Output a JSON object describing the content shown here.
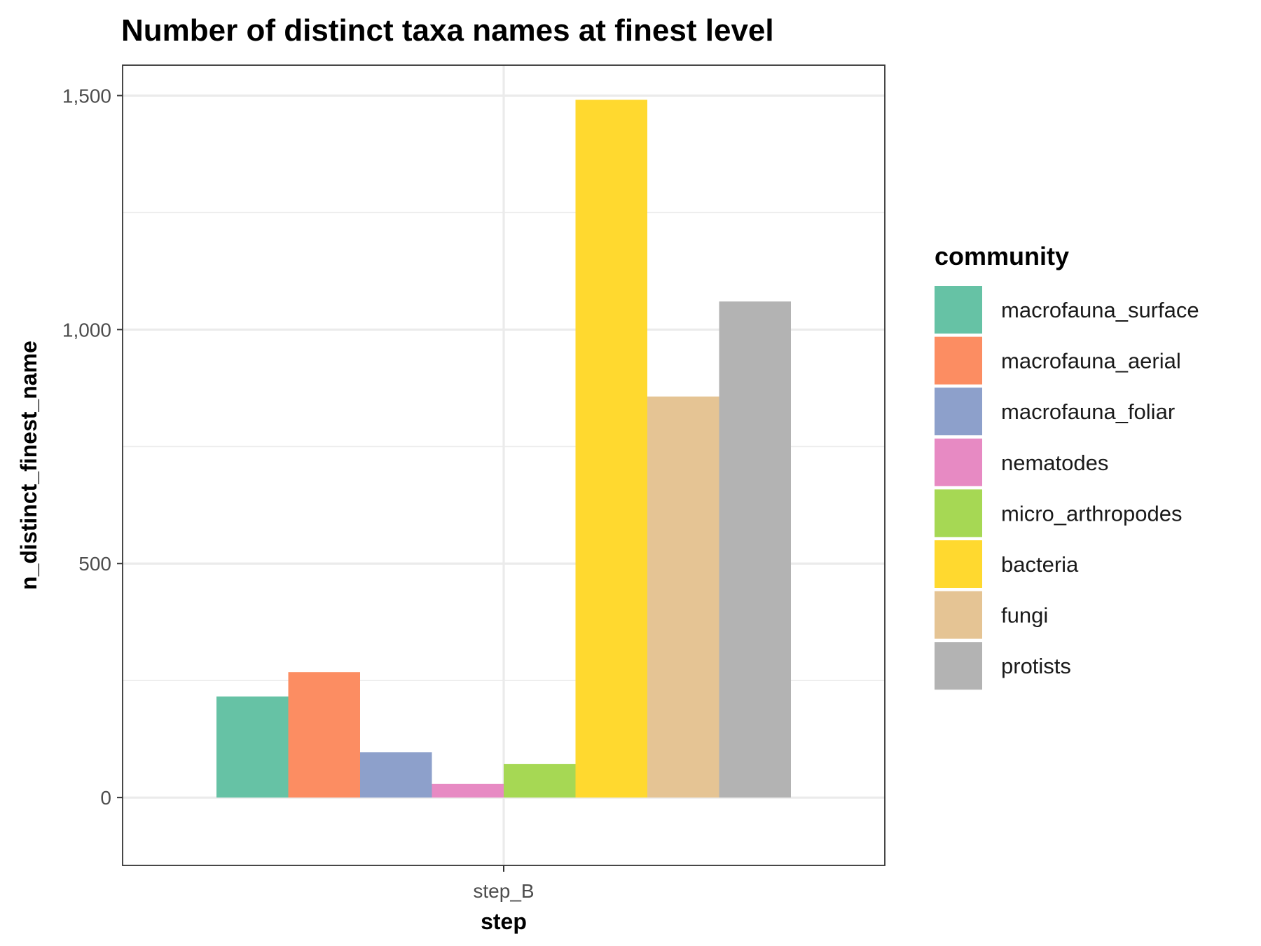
{
  "chart_data": {
    "type": "bar",
    "title": "Number of distinct taxa names at finest level",
    "xlabel": "step",
    "ylabel": "n_distinct_finest_name",
    "categories": [
      "step_B"
    ],
    "ylim": [
      -145,
      1565
    ],
    "yticks": [
      0,
      500,
      1000,
      1500
    ],
    "ytick_labels": [
      "0",
      "500",
      "1,000",
      "1,500"
    ],
    "grid": true,
    "legend": {
      "title": "community",
      "position": "right"
    },
    "series": [
      {
        "name": "macrofauna_surface",
        "color": "#66C2A5",
        "values": [
          216
        ]
      },
      {
        "name": "macrofauna_aerial",
        "color": "#FC8D62",
        "values": [
          268
        ]
      },
      {
        "name": "macrofauna_foliar",
        "color": "#8DA0CB",
        "values": [
          97
        ]
      },
      {
        "name": "nematodes",
        "color": "#E78AC3",
        "values": [
          29
        ]
      },
      {
        "name": "micro_arthropodes",
        "color": "#A6D854",
        "values": [
          72
        ]
      },
      {
        "name": "bacteria",
        "color": "#FFD92F",
        "values": [
          1491
        ]
      },
      {
        "name": "fungi",
        "color": "#E5C494",
        "values": [
          857
        ]
      },
      {
        "name": "protists",
        "color": "#B3B3B3",
        "values": [
          1060
        ]
      }
    ]
  }
}
